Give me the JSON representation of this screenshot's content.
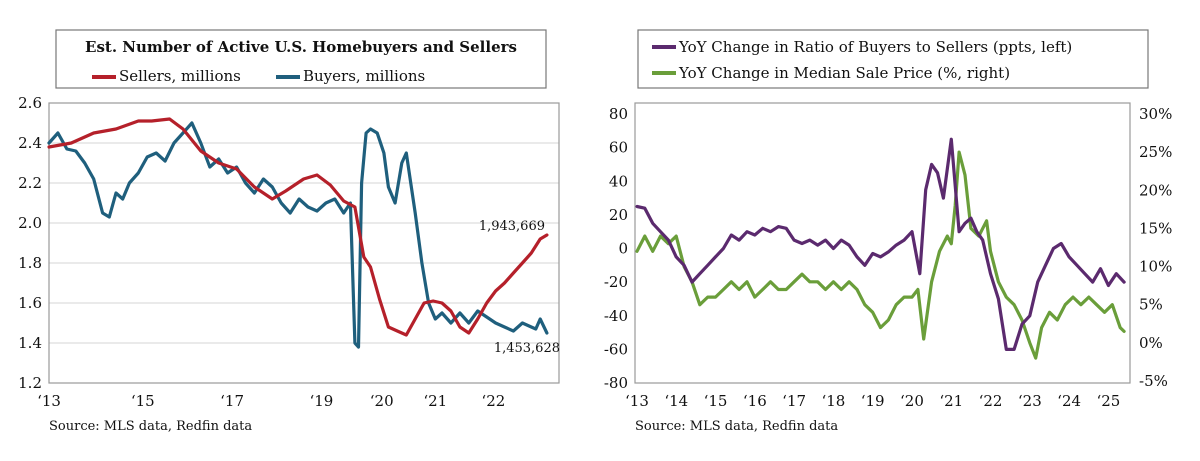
{
  "chart_data": [
    {
      "type": "line",
      "title": "Est. Number of Active U.S. Homebuyers and Sellers",
      "source": "Source: MLS data, Redfin data",
      "ylim": [
        1.2,
        2.6
      ],
      "y_ticks": [
        "2.6",
        "2.4",
        "2.2",
        "2.0",
        "1.8",
        "1.6",
        "1.4",
        "1.2"
      ],
      "x_tick_labels": [
        "‘13",
        "‘15",
        "‘17",
        "‘19",
        "‘20",
        "‘21",
        "‘22"
      ],
      "grid": true,
      "legend_position": "top",
      "annotations": [
        "1,943,669",
        "1,453,628"
      ],
      "series": [
        {
          "name": "Sellers, millions",
          "color": "#b5202a",
          "x": [
            2013.0,
            2013.5,
            2014.0,
            2014.5,
            2015.0,
            2015.3,
            2015.7,
            2016.0,
            2016.4,
            2016.8,
            2017.2,
            2017.6,
            2018.0,
            2018.3,
            2018.7,
            2019.0,
            2019.3,
            2019.6,
            2019.85,
            2020.05,
            2020.2,
            2020.4,
            2020.6,
            2020.8,
            2021.0,
            2021.2,
            2021.4,
            2021.6,
            2021.8,
            2022.0,
            2022.2,
            2022.4,
            2022.6,
            2022.8,
            2023.0,
            2023.2,
            2023.4,
            2023.6,
            2023.8,
            2024.0,
            2024.15
          ],
          "values": [
            2.38,
            2.4,
            2.45,
            2.47,
            2.51,
            2.51,
            2.52,
            2.47,
            2.36,
            2.3,
            2.27,
            2.18,
            2.12,
            2.16,
            2.22,
            2.24,
            2.19,
            2.11,
            2.08,
            1.83,
            1.78,
            1.62,
            1.48,
            1.46,
            1.44,
            1.52,
            1.6,
            1.61,
            1.6,
            1.56,
            1.48,
            1.45,
            1.52,
            1.6,
            1.66,
            1.7,
            1.75,
            1.8,
            1.85,
            1.92,
            1.94
          ]
        },
        {
          "name": "Buyers, millions",
          "color": "#1f5f7d",
          "x": [
            2013.0,
            2013.2,
            2013.4,
            2013.6,
            2013.8,
            2014.0,
            2014.2,
            2014.35,
            2014.5,
            2014.65,
            2014.8,
            2015.0,
            2015.2,
            2015.4,
            2015.6,
            2015.8,
            2016.0,
            2016.2,
            2016.4,
            2016.6,
            2016.8,
            2017.0,
            2017.2,
            2017.4,
            2017.6,
            2017.8,
            2018.0,
            2018.2,
            2018.4,
            2018.6,
            2018.8,
            2019.0,
            2019.2,
            2019.4,
            2019.6,
            2019.75,
            2019.85,
            2019.93,
            2020.0,
            2020.1,
            2020.2,
            2020.35,
            2020.5,
            2020.6,
            2020.75,
            2020.9,
            2021.0,
            2021.2,
            2021.35,
            2021.5,
            2021.65,
            2021.8,
            2022.0,
            2022.2,
            2022.4,
            2022.6,
            2022.8,
            2023.0,
            2023.2,
            2023.4,
            2023.6,
            2023.8,
            2023.9,
            2024.0,
            2024.15
          ],
          "values": [
            2.4,
            2.45,
            2.37,
            2.36,
            2.3,
            2.22,
            2.05,
            2.03,
            2.15,
            2.12,
            2.2,
            2.25,
            2.33,
            2.35,
            2.31,
            2.4,
            2.45,
            2.5,
            2.4,
            2.28,
            2.32,
            2.25,
            2.28,
            2.2,
            2.15,
            2.22,
            2.18,
            2.1,
            2.05,
            2.12,
            2.08,
            2.06,
            2.1,
            2.12,
            2.05,
            2.1,
            1.4,
            1.38,
            2.2,
            2.45,
            2.47,
            2.45,
            2.35,
            2.18,
            2.1,
            2.3,
            2.35,
            2.05,
            1.8,
            1.6,
            1.52,
            1.55,
            1.5,
            1.55,
            1.5,
            1.56,
            1.53,
            1.5,
            1.48,
            1.46,
            1.5,
            1.48,
            1.47,
            1.52,
            1.45
          ]
        }
      ]
    },
    {
      "type": "line",
      "source": "Source: MLS data, Redfin data",
      "ylim_left": [
        -80,
        80
      ],
      "ylim_right": [
        -5,
        30
      ],
      "y_ticks_left": [
        "80",
        "60",
        "40",
        "20",
        "0",
        "-20",
        "-40",
        "-60",
        "-80"
      ],
      "y_ticks_right": [
        "30%",
        "25%",
        "20%",
        "15%",
        "10%",
        "5%",
        "0%",
        "-5%"
      ],
      "x_tick_labels": [
        "‘13",
        "‘14",
        "‘15",
        "‘16",
        "‘17",
        "‘18",
        "‘19",
        "‘20",
        "‘21",
        "‘22",
        "‘23",
        "‘24",
        "‘25"
      ],
      "grid": false,
      "legend_position": "top",
      "series": [
        {
          "name": "YoY Change in Ratio of Buyers to Sellers (ppts, left)",
          "color": "#5b2a6e",
          "axis": "left",
          "x": [
            2013.0,
            2013.2,
            2013.4,
            2013.6,
            2013.8,
            2014.0,
            2014.2,
            2014.4,
            2014.6,
            2014.8,
            2015.0,
            2015.2,
            2015.4,
            2015.6,
            2015.8,
            2016.0,
            2016.2,
            2016.4,
            2016.6,
            2016.8,
            2017.0,
            2017.2,
            2017.4,
            2017.6,
            2017.8,
            2018.0,
            2018.2,
            2018.4,
            2018.6,
            2018.8,
            2019.0,
            2019.2,
            2019.4,
            2019.6,
            2019.8,
            2020.0,
            2020.2,
            2020.35,
            2020.5,
            2020.65,
            2020.8,
            2021.0,
            2021.2,
            2021.35,
            2021.5,
            2021.65,
            2021.8,
            2022.0,
            2022.2,
            2022.4,
            2022.6,
            2022.8,
            2023.0,
            2023.2,
            2023.4,
            2023.6,
            2023.8,
            2024.0,
            2024.2,
            2024.4,
            2024.6,
            2024.8,
            2025.0,
            2025.2,
            2025.4
          ],
          "values": [
            25,
            24,
            15,
            10,
            5,
            -5,
            -10,
            -20,
            -15,
            -10,
            -5,
            0,
            8,
            5,
            10,
            8,
            12,
            10,
            13,
            12,
            5,
            3,
            5,
            2,
            5,
            0,
            5,
            2,
            -5,
            -10,
            -3,
            -5,
            -2,
            2,
            5,
            10,
            -15,
            35,
            50,
            45,
            30,
            65,
            10,
            15,
            18,
            10,
            5,
            -15,
            -30,
            -60,
            -60,
            -45,
            -40,
            -20,
            -10,
            0,
            3,
            -5,
            -10,
            -15,
            -20,
            -12,
            -22,
            -15,
            -20
          ]
        },
        {
          "name": "YoY Change in Median Sale Price (%, right)",
          "color": "#6a9e3a",
          "axis": "right",
          "x": [
            2013.0,
            2013.2,
            2013.4,
            2013.6,
            2013.8,
            2014.0,
            2014.2,
            2014.4,
            2014.6,
            2014.8,
            2015.0,
            2015.2,
            2015.4,
            2015.6,
            2015.8,
            2016.0,
            2016.2,
            2016.4,
            2016.6,
            2016.8,
            2017.0,
            2017.2,
            2017.4,
            2017.6,
            2017.8,
            2018.0,
            2018.2,
            2018.4,
            2018.6,
            2018.8,
            2019.0,
            2019.2,
            2019.4,
            2019.6,
            2019.8,
            2020.0,
            2020.15,
            2020.3,
            2020.5,
            2020.7,
            2020.9,
            2021.0,
            2021.1,
            2021.2,
            2021.35,
            2021.5,
            2021.7,
            2021.9,
            2022.0,
            2022.2,
            2022.4,
            2022.6,
            2022.8,
            2023.0,
            2023.15,
            2023.3,
            2023.5,
            2023.7,
            2023.9,
            2024.1,
            2024.3,
            2024.5,
            2024.7,
            2024.9,
            2025.1,
            2025.3,
            2025.4
          ],
          "values": [
            12,
            14,
            12,
            14,
            13,
            14,
            10,
            8,
            5,
            6,
            6,
            7,
            8,
            7,
            8,
            6,
            7,
            8,
            7,
            7,
            8,
            9,
            8,
            8,
            7,
            8,
            7,
            8,
            7,
            5,
            4,
            2,
            3,
            5,
            6,
            6,
            7,
            0.5,
            8,
            12,
            14,
            13,
            18,
            25,
            22,
            15,
            14,
            16,
            12,
            8,
            6,
            5,
            3,
            0,
            -2,
            2,
            4,
            3,
            5,
            6,
            5,
            6,
            5,
            4,
            5,
            2,
            1.5
          ]
        }
      ]
    }
  ]
}
